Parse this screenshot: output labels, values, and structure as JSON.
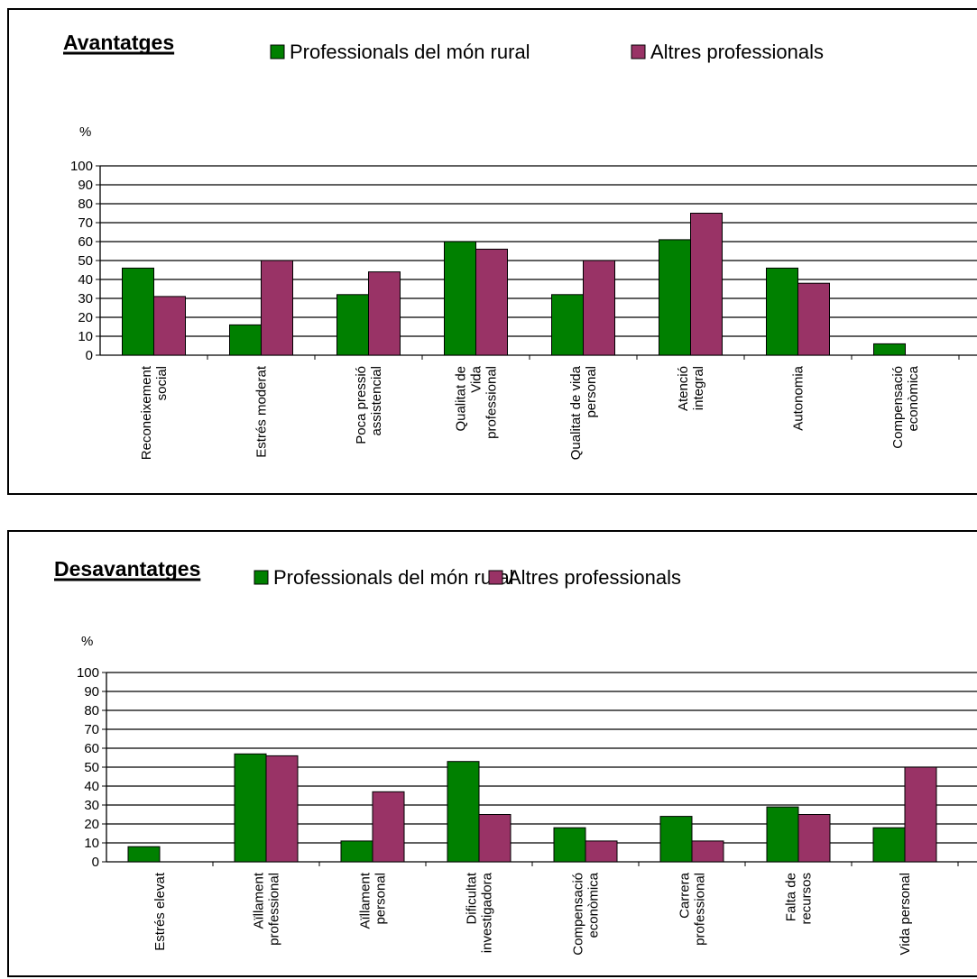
{
  "chart_data": [
    {
      "type": "bar",
      "title": "Avantatges",
      "ylabel": "%",
      "ylim": [
        0,
        100
      ],
      "yticks": [
        "0",
        "10",
        "20",
        "30",
        "40",
        "50",
        "60",
        "70",
        "80",
        "90",
        "100"
      ],
      "grid": true,
      "legend_position": "top",
      "categories": [
        [
          "Reconeixement",
          "social"
        ],
        [
          "Estrés moderat"
        ],
        [
          "Poca pressió",
          "assistencial"
        ],
        [
          "Qualitat de",
          "Vida",
          "professional"
        ],
        [
          "Qualitat de vida",
          "personal"
        ],
        [
          "Atenció",
          "integral"
        ],
        [
          "Autonomia"
        ],
        [
          "Compensació",
          "econòmica"
        ]
      ],
      "series": [
        {
          "name": "Professionals del món rural",
          "color": "#008000",
          "values": [
            46,
            16,
            32,
            60,
            32,
            61,
            46,
            6
          ]
        },
        {
          "name": "Altres professionals",
          "color": "#993366",
          "values": [
            31,
            50,
            44,
            56,
            50,
            75,
            38,
            0
          ]
        }
      ]
    },
    {
      "type": "bar",
      "title": "Desavantatges",
      "ylabel": "%",
      "ylim": [
        0,
        100
      ],
      "yticks": [
        "0",
        "10",
        "20",
        "30",
        "40",
        "50",
        "60",
        "70",
        "80",
        "90",
        "100"
      ],
      "grid": true,
      "legend_position": "top",
      "categories": [
        [
          "Estrés elevat"
        ],
        [
          "Aïllament",
          "professional"
        ],
        [
          "Aïllament",
          "personal"
        ],
        [
          "Dificultat",
          "investigadora"
        ],
        [
          "Compensació",
          "econòmica"
        ],
        [
          "Carrera",
          "professional"
        ],
        [
          "Falta de",
          "recursos"
        ],
        [
          "Vida personal"
        ]
      ],
      "series": [
        {
          "name": "Professionals del món rural",
          "color": "#008000",
          "values": [
            8,
            57,
            11,
            53,
            18,
            24,
            29,
            18
          ]
        },
        {
          "name": "Altres professionals",
          "color": "#993366",
          "values": [
            0,
            56,
            37,
            25,
            11,
            11,
            25,
            50
          ]
        }
      ]
    }
  ]
}
